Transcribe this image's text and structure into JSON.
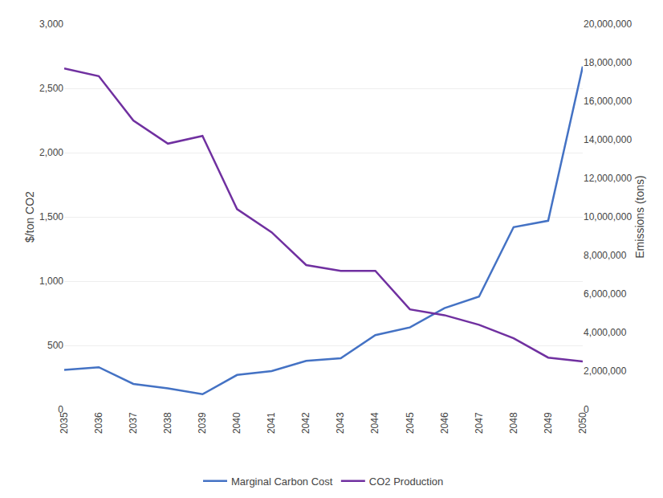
{
  "chart_data": {
    "type": "line",
    "x": [
      2035,
      2036,
      2037,
      2038,
      2039,
      2040,
      2041,
      2042,
      2043,
      2044,
      2045,
      2046,
      2047,
      2048,
      2049,
      2050
    ],
    "series": [
      {
        "name": "Marginal Carbon Cost",
        "color": "#4472C4",
        "axis": "y",
        "values": [
          310,
          330,
          200,
          165,
          120,
          270,
          300,
          380,
          400,
          580,
          640,
          790,
          880,
          1420,
          1470,
          2670
        ]
      },
      {
        "name": "CO2 Production",
        "color": "#7030A0",
        "axis": "y2",
        "values": [
          17700000,
          17300000,
          15000000,
          13800000,
          14200000,
          10400000,
          9200000,
          7500000,
          7200000,
          7200000,
          5200000,
          4900000,
          4400000,
          3700000,
          2700000,
          2500000
        ]
      }
    ],
    "y_label": "$/ton CO2",
    "y2_label": "Emissions (tons)",
    "xlim": [
      2035,
      2050
    ],
    "xticks": [
      2035,
      2036,
      2037,
      2038,
      2039,
      2040,
      2041,
      2042,
      2043,
      2044,
      2045,
      2046,
      2047,
      2048,
      2049,
      2050
    ],
    "ylim": [
      0,
      3000
    ],
    "yticks": [
      0,
      500,
      {
        "value": 1000,
        "label": "1,000"
      },
      {
        "value": 1500,
        "label": "1,500"
      },
      {
        "value": 2000,
        "label": "2,000"
      },
      {
        "value": 2500,
        "label": "2,500"
      },
      {
        "value": 3000,
        "label": "3,000"
      }
    ],
    "y2lim": [
      0,
      20000000
    ],
    "y2ticks": [
      0,
      {
        "value": 2000000,
        "label": "2,000,000"
      },
      {
        "value": 4000000,
        "label": "4,000,000"
      },
      {
        "value": 6000000,
        "label": "6,000,000"
      },
      {
        "value": 8000000,
        "label": "8,000,000"
      },
      {
        "value": 10000000,
        "label": "10,000,000"
      },
      {
        "value": 12000000,
        "label": "12,000,000"
      },
      {
        "value": 14000000,
        "label": "14,000,000"
      },
      {
        "value": 16000000,
        "label": "16,000,000"
      },
      {
        "value": 18000000,
        "label": "18,000,000"
      },
      {
        "value": 20000000,
        "label": "20,000,000"
      }
    ],
    "grid": true,
    "legend": "bottom"
  }
}
